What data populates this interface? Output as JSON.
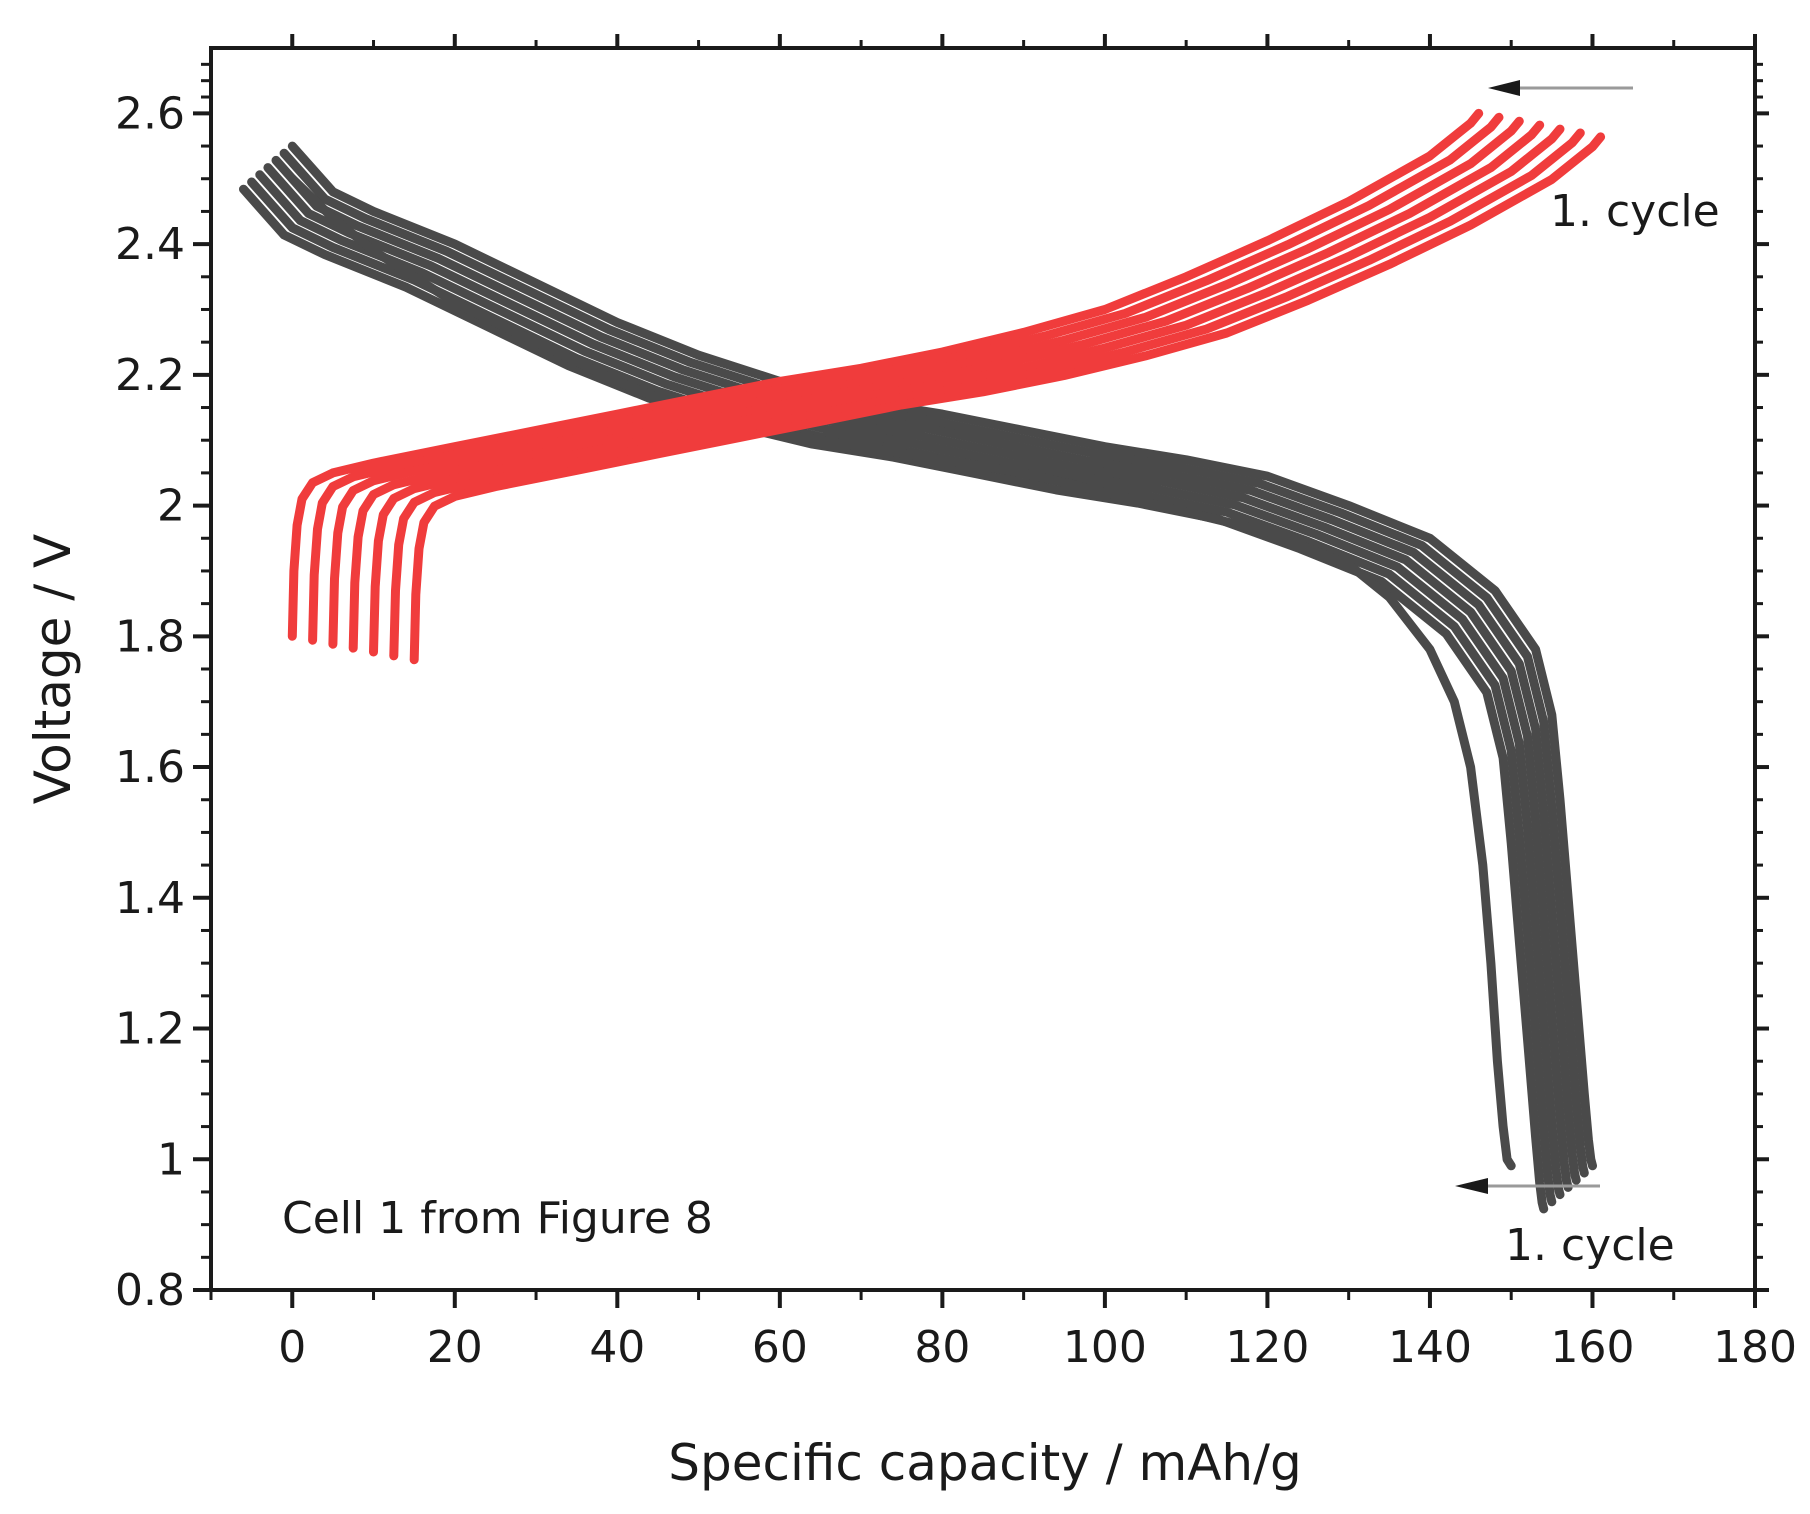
{
  "chart_data": {
    "type": "line",
    "title": "",
    "xlabel": "Specific capacity / mAh/g",
    "ylabel": "Voltage / V",
    "xlim": [
      -10,
      180
    ],
    "ylim": [
      0.8,
      2.7
    ],
    "x_ticks": [
      0,
      20,
      40,
      60,
      80,
      100,
      120,
      140,
      160,
      180
    ],
    "y_ticks": [
      0.8,
      1,
      1.2,
      1.4,
      1.6,
      1.8,
      2,
      2.2,
      2.4,
      2.6
    ],
    "x_tick_labels": [
      "0",
      "20",
      "40",
      "60",
      "80",
      "100",
      "120",
      "140",
      "160",
      "180"
    ],
    "y_tick_labels": [
      "0.8",
      "1",
      "1.2",
      "1.4",
      "1.6",
      "1.8",
      "2",
      "2.2",
      "2.4",
      "2.6"
    ],
    "grid": false,
    "annotation": "Cell 1 from Figure 8",
    "arrow_label_charge": "1. cycle",
    "arrow_label_discharge": "1. cycle",
    "colors": {
      "discharge": "#4a4a4a",
      "charge": "#f03c3c",
      "arrow": "#9a9a9a",
      "axis": "#1a1a1a"
    },
    "series": [
      {
        "name": "discharge (cycles)",
        "color": "#4a4a4a",
        "band_shifts": [
          0,
          1,
          2,
          3,
          4,
          5,
          6
        ],
        "band_shift_step_x": -1.0,
        "band_shift_step_y": -0.011,
        "x": [
          0,
          5,
          10,
          20,
          30,
          40,
          50,
          60,
          70,
          80,
          90,
          100,
          110,
          120,
          130,
          140,
          148,
          153,
          155,
          156,
          157,
          158,
          159,
          159.5,
          159.8,
          160
        ],
        "y": [
          2.55,
          2.48,
          2.45,
          2.4,
          2.34,
          2.28,
          2.23,
          2.19,
          2.16,
          2.14,
          2.115,
          2.09,
          2.07,
          2.045,
          2.0,
          1.95,
          1.87,
          1.78,
          1.68,
          1.55,
          1.4,
          1.25,
          1.1,
          1.03,
          1.0,
          0.99
        ]
      },
      {
        "name": "discharge (final cycle)",
        "color": "#4a4a4a",
        "x": [
          0,
          5,
          10,
          20,
          30,
          40,
          50,
          60,
          70,
          80,
          90,
          100,
          110,
          120,
          130,
          135,
          140,
          143,
          145,
          146.5,
          147.5,
          148.3,
          149,
          149.5,
          150
        ],
        "y": [
          2.5,
          2.44,
          2.39,
          2.31,
          2.25,
          2.19,
          2.14,
          2.11,
          2.09,
          2.07,
          2.05,
          2.02,
          1.99,
          1.96,
          1.91,
          1.86,
          1.78,
          1.7,
          1.6,
          1.45,
          1.3,
          1.15,
          1.05,
          1.0,
          0.99
        ]
      },
      {
        "name": "charge (cycles)",
        "color": "#f03c3c",
        "band_shifts": [
          0,
          1,
          2,
          3,
          4,
          5,
          6
        ],
        "band_shift_step_x": 2.5,
        "band_shift_step_y": -0.006,
        "x": [
          0,
          0.2,
          0.6,
          1.2,
          2.5,
          5,
          10,
          20,
          30,
          40,
          50,
          60,
          70,
          80,
          90,
          100,
          110,
          120,
          130,
          140,
          145,
          146
        ],
        "y": [
          1.8,
          1.9,
          1.97,
          2.01,
          2.035,
          2.05,
          2.065,
          2.09,
          2.115,
          2.14,
          2.165,
          2.19,
          2.21,
          2.235,
          2.265,
          2.3,
          2.35,
          2.405,
          2.465,
          2.535,
          2.585,
          2.6
        ]
      }
    ]
  }
}
